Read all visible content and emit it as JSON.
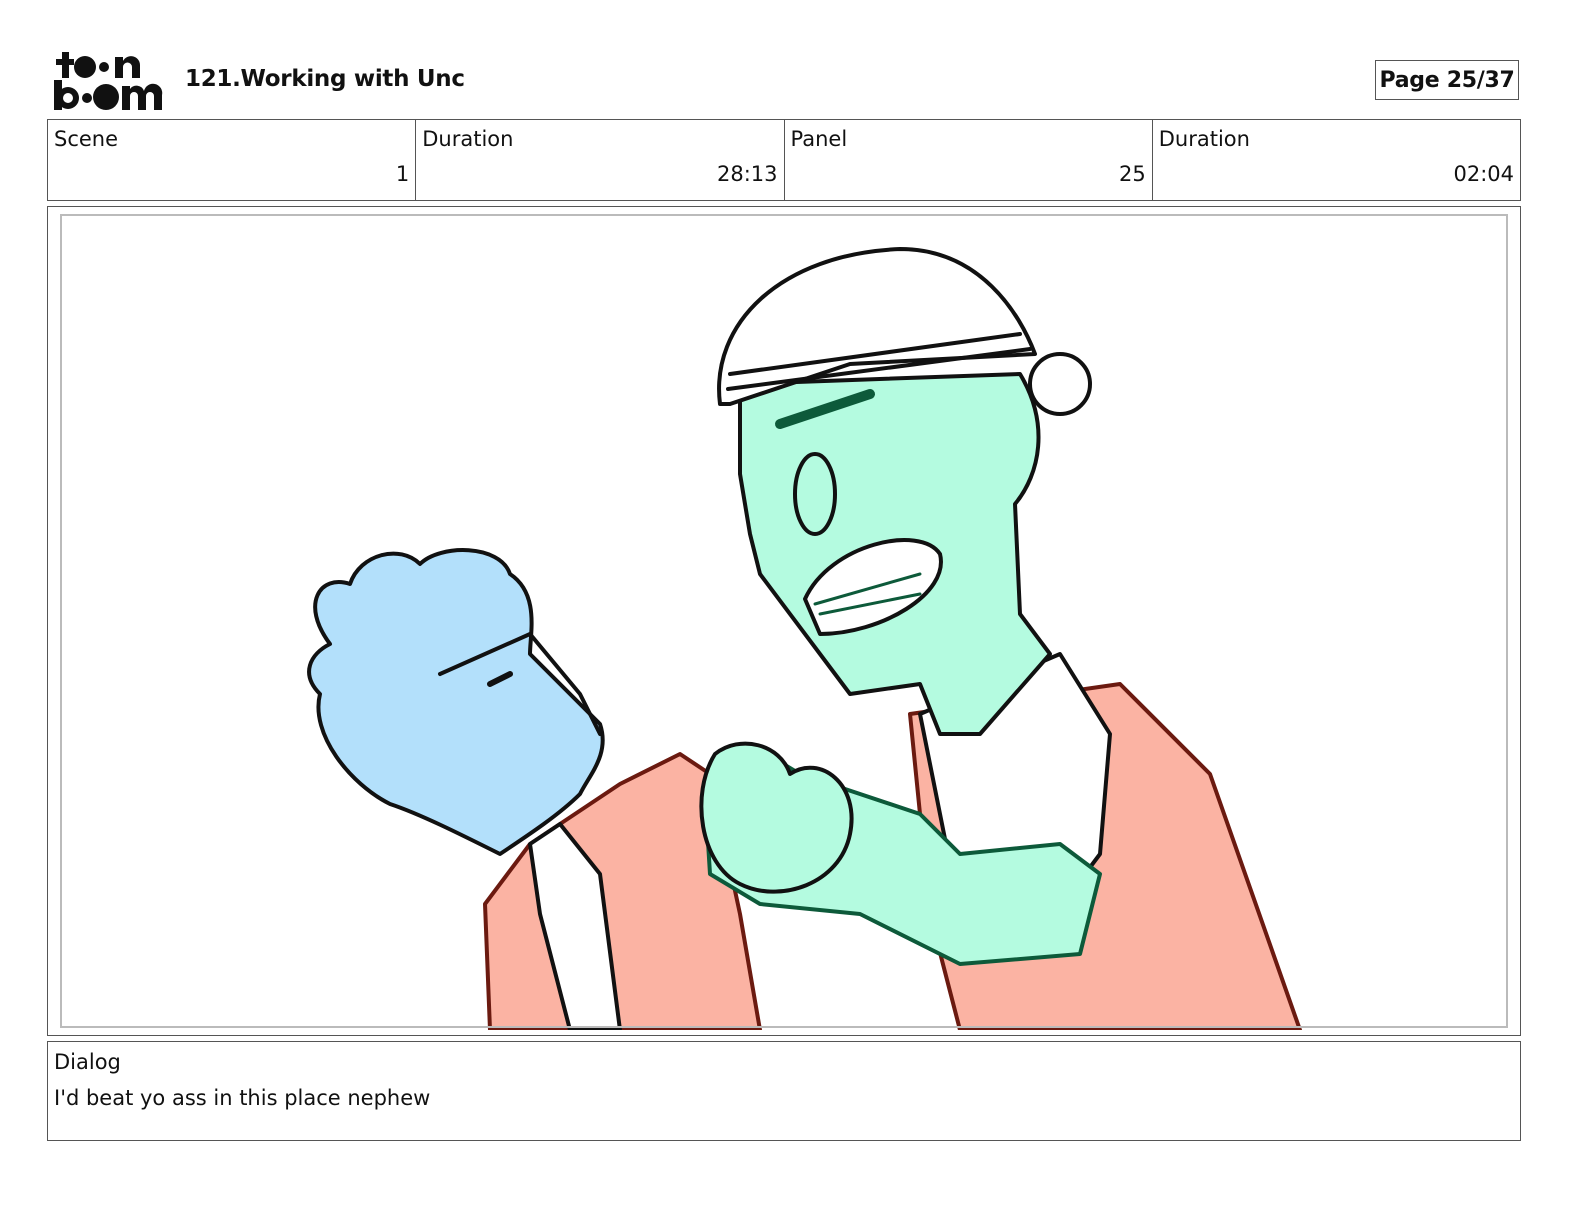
{
  "header": {
    "logo_text": "toon boom",
    "title": "121.Working with Unc",
    "page": "Page 25/37"
  },
  "info": {
    "scene_label": "Scene",
    "scene_value": "1",
    "scene_duration_label": "Duration",
    "scene_duration_value": "28:13",
    "panel_label": "Panel",
    "panel_value": "25",
    "panel_duration_label": "Duration",
    "panel_duration_value": "02:04"
  },
  "dialog": {
    "label": "Dialog",
    "text": "I'd beat yo ass in this place nephew"
  },
  "colors": {
    "blue_character": "#b3e0fb",
    "green_character": "#b4fbe0",
    "shirt": "#fbb3a3",
    "border": "#555555"
  }
}
